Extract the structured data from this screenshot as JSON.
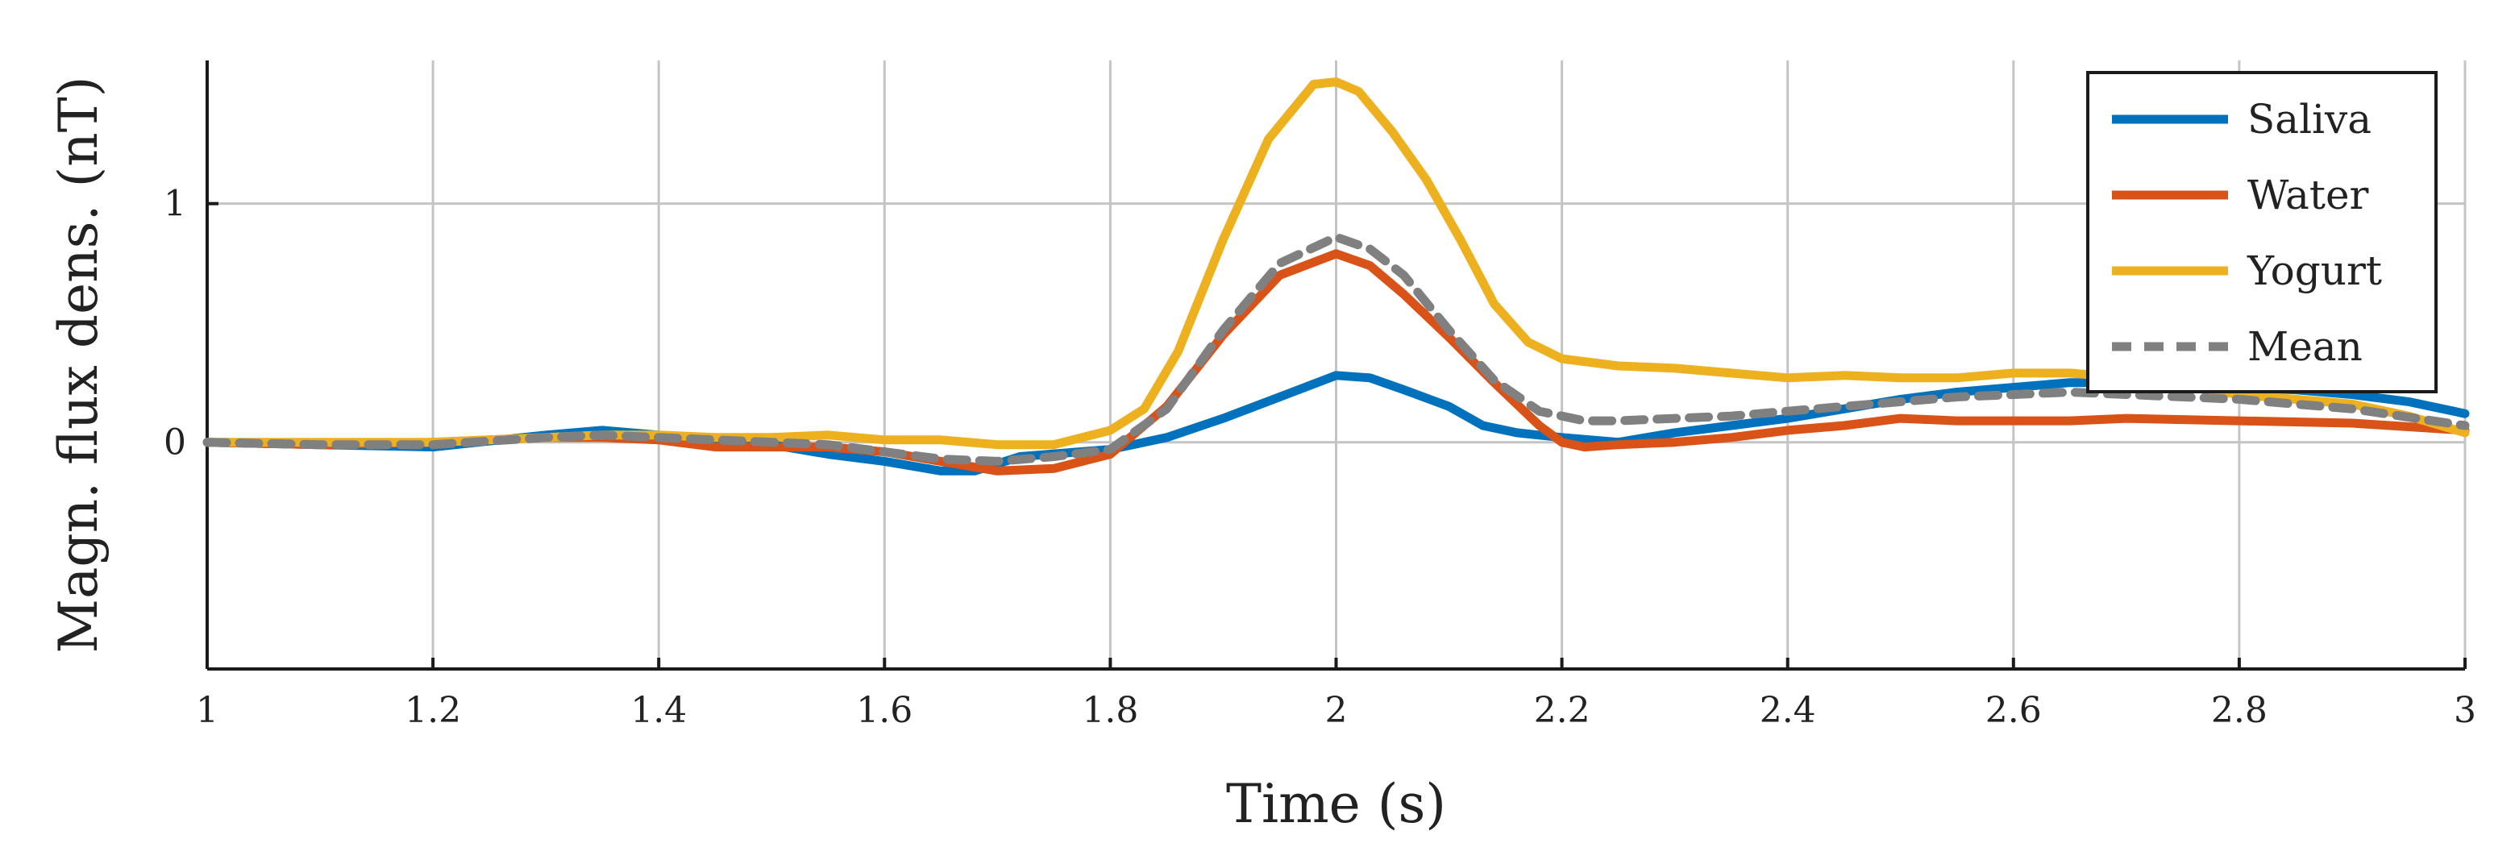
{
  "chart_data": {
    "type": "line",
    "title": "",
    "xlabel": "Time (s)",
    "ylabel": "Magn. flux dens. (nT)",
    "xlim": [
      1,
      3
    ],
    "ylim": [
      -0.95,
      1.6
    ],
    "grid": true,
    "legend_position": "top-right",
    "x_ticks": [
      1,
      1.2,
      1.4,
      1.6,
      1.8,
      2,
      2.2,
      2.4,
      2.6,
      2.8,
      3
    ],
    "x_tick_labels": [
      "1",
      "1.2",
      "1.4",
      "1.6",
      "1.8",
      "2",
      "2.2",
      "2.4",
      "2.6",
      "2.8",
      "3"
    ],
    "y_ticks": [
      0,
      1
    ],
    "y_tick_labels": [
      "0",
      "1"
    ],
    "y_grid_extra": [
      -1
    ],
    "series": [
      {
        "name": "Saliva",
        "color": "#0072BD",
        "dash": "solid",
        "x": [
          1,
          1.1,
          1.2,
          1.3,
          1.35,
          1.4,
          1.45,
          1.5,
          1.55,
          1.6,
          1.65,
          1.68,
          1.72,
          1.8,
          1.85,
          1.9,
          1.95,
          2,
          2.03,
          2.06,
          2.1,
          2.13,
          2.16,
          2.2,
          2.25,
          2.3,
          2.35,
          2.4,
          2.45,
          2.5,
          2.55,
          2.6,
          2.65,
          2.7,
          2.75,
          2.8,
          2.85,
          2.9,
          2.95,
          3
        ],
        "y": [
          0,
          -0.01,
          -0.02,
          0.03,
          0.05,
          0.03,
          0.01,
          -0.01,
          -0.05,
          -0.08,
          -0.12,
          -0.12,
          -0.06,
          -0.03,
          0.02,
          0.1,
          0.19,
          0.28,
          0.27,
          0.22,
          0.15,
          0.07,
          0.04,
          0.02,
          0.0,
          0.04,
          0.07,
          0.1,
          0.14,
          0.18,
          0.21,
          0.23,
          0.25,
          0.25,
          0.24,
          0.23,
          0.22,
          0.2,
          0.17,
          0.12
        ]
      },
      {
        "name": "Water",
        "color": "#D95319",
        "dash": "solid",
        "x": [
          1,
          1.1,
          1.2,
          1.3,
          1.35,
          1.4,
          1.45,
          1.5,
          1.55,
          1.6,
          1.65,
          1.7,
          1.75,
          1.8,
          1.85,
          1.9,
          1.95,
          2,
          2.03,
          2.06,
          2.1,
          2.14,
          2.18,
          2.2,
          2.22,
          2.25,
          2.3,
          2.35,
          2.4,
          2.45,
          2.5,
          2.55,
          2.6,
          2.65,
          2.7,
          2.8,
          2.9,
          3
        ],
        "y": [
          0,
          -0.01,
          0.0,
          0.02,
          0.02,
          0.01,
          -0.02,
          -0.02,
          -0.02,
          -0.04,
          -0.08,
          -0.12,
          -0.11,
          -0.05,
          0.15,
          0.45,
          0.7,
          0.79,
          0.74,
          0.62,
          0.44,
          0.25,
          0.07,
          0.0,
          -0.02,
          -0.01,
          0.0,
          0.02,
          0.05,
          0.07,
          0.1,
          0.09,
          0.09,
          0.09,
          0.1,
          0.09,
          0.08,
          0.05
        ]
      },
      {
        "name": "Yogurt",
        "color": "#EDB120",
        "dash": "solid",
        "x": [
          1,
          1.1,
          1.2,
          1.3,
          1.35,
          1.4,
          1.45,
          1.5,
          1.55,
          1.6,
          1.65,
          1.7,
          1.75,
          1.8,
          1.83,
          1.86,
          1.9,
          1.94,
          1.98,
          2,
          2.02,
          2.05,
          2.08,
          2.11,
          2.14,
          2.17,
          2.2,
          2.25,
          2.3,
          2.35,
          2.4,
          2.45,
          2.5,
          2.55,
          2.6,
          2.65,
          2.7,
          2.8,
          2.9,
          2.95,
          3
        ],
        "y": [
          0,
          0.0,
          0.0,
          0.02,
          0.03,
          0.03,
          0.02,
          0.02,
          0.03,
          0.01,
          0.01,
          -0.01,
          -0.01,
          0.05,
          0.14,
          0.38,
          0.85,
          1.27,
          1.5,
          1.51,
          1.47,
          1.3,
          1.1,
          0.85,
          0.58,
          0.42,
          0.35,
          0.32,
          0.31,
          0.29,
          0.27,
          0.28,
          0.27,
          0.27,
          0.29,
          0.29,
          0.27,
          0.2,
          0.16,
          0.11,
          0.04
        ]
      },
      {
        "name": "Mean",
        "color": "#808080",
        "dash": "dashed",
        "x": [
          1,
          1.1,
          1.2,
          1.3,
          1.35,
          1.4,
          1.45,
          1.5,
          1.55,
          1.6,
          1.65,
          1.7,
          1.75,
          1.8,
          1.85,
          1.9,
          1.95,
          2,
          2.03,
          2.06,
          2.1,
          2.14,
          2.18,
          2.22,
          2.25,
          2.3,
          2.35,
          2.4,
          2.45,
          2.5,
          2.55,
          2.6,
          2.65,
          2.7,
          2.8,
          2.9,
          3
        ],
        "y": [
          0,
          -0.01,
          -0.01,
          0.02,
          0.03,
          0.02,
          0.01,
          0.0,
          -0.01,
          -0.04,
          -0.07,
          -0.08,
          -0.06,
          -0.03,
          0.14,
          0.47,
          0.75,
          0.86,
          0.81,
          0.7,
          0.47,
          0.26,
          0.13,
          0.09,
          0.09,
          0.1,
          0.11,
          0.13,
          0.15,
          0.17,
          0.19,
          0.2,
          0.21,
          0.2,
          0.18,
          0.14,
          0.07
        ]
      }
    ]
  }
}
